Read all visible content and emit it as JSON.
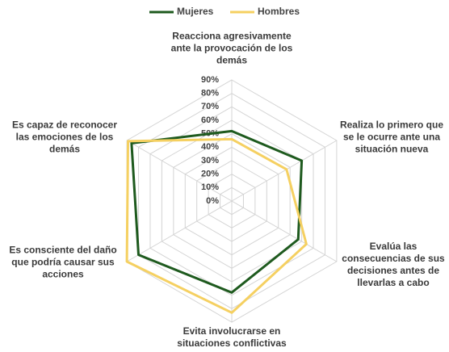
{
  "chart_data": {
    "type": "radar",
    "categories": [
      "Reacciona agresivamente ante la provocación de los demás",
      "Realiza lo primero que se le ocurre ante una situación nueva",
      "Evalúa las consecuencias de sus decisiones antes de llevarlas a cabo",
      "Evita involucrarse en situaciones conflictivas",
      "Es consciente del daño que podría causar sus acciones",
      "Es capaz de reconocer las emociones de los demás"
    ],
    "series": [
      {
        "name": "Mujeres",
        "color": "#1e5a1e",
        "values": [
          52,
          60,
          57,
          68,
          80,
          86
        ]
      },
      {
        "name": "Hombres",
        "color": "#f5d061",
        "values": [
          46,
          47,
          64,
          83,
          90,
          89
        ]
      }
    ],
    "ylim": [
      0,
      90
    ],
    "yticks": [
      {
        "value": 0,
        "label": "0%"
      },
      {
        "value": 10,
        "label": "10%"
      },
      {
        "value": 20,
        "label": "20%"
      },
      {
        "value": 30,
        "label": "30%"
      },
      {
        "value": 40,
        "label": "40%"
      },
      {
        "value": 50,
        "label": "50%"
      },
      {
        "value": 60,
        "label": "60%"
      },
      {
        "value": 70,
        "label": "70%"
      },
      {
        "value": 80,
        "label": "80%"
      },
      {
        "value": 90,
        "label": "90%"
      }
    ],
    "grid": true,
    "legend": "top"
  }
}
